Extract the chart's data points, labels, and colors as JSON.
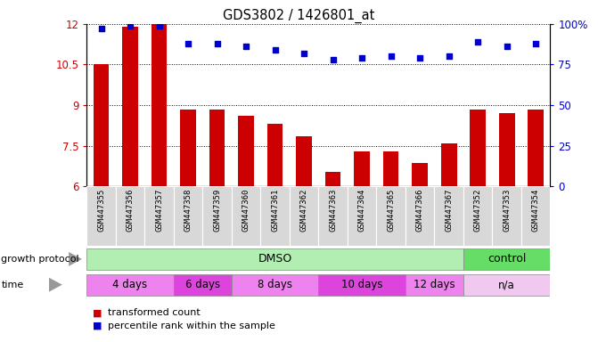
{
  "title": "GDS3802 / 1426801_at",
  "samples": [
    "GSM447355",
    "GSM447356",
    "GSM447357",
    "GSM447358",
    "GSM447359",
    "GSM447360",
    "GSM447361",
    "GSM447362",
    "GSM447363",
    "GSM447364",
    "GSM447365",
    "GSM447366",
    "GSM447367",
    "GSM447352",
    "GSM447353",
    "GSM447354"
  ],
  "bar_values": [
    10.5,
    11.9,
    12.0,
    8.85,
    8.85,
    8.6,
    8.3,
    7.85,
    6.55,
    7.3,
    7.3,
    6.85,
    7.6,
    8.85,
    8.7,
    8.85
  ],
  "dot_values": [
    97,
    99,
    99,
    88,
    88,
    86,
    84,
    82,
    78,
    79,
    80,
    79,
    80,
    89,
    86,
    88
  ],
  "ylim_left": [
    6,
    12
  ],
  "ylim_right": [
    0,
    100
  ],
  "yticks_left": [
    6,
    7.5,
    9,
    10.5,
    12
  ],
  "yticks_right": [
    0,
    25,
    50,
    75,
    100
  ],
  "bar_color": "#CC0000",
  "dot_color": "#0000CC",
  "legend_bar_label": "transformed count",
  "legend_dot_label": "percentile rank within the sample",
  "growth_protocol_label": "growth protocol",
  "time_label": "time",
  "tick_color_left": "#CC0000",
  "tick_color_right": "#0000CC",
  "dmso_color": "#B2EEB2",
  "control_color": "#66DD66",
  "time_color_alt1": "#EE82EE",
  "time_color_alt2": "#DD44DD",
  "time_color_na": "#F0C8F0",
  "sample_bg_color": "#D8D8D8",
  "time_boundaries": [
    [
      0,
      3,
      "4 days"
    ],
    [
      3,
      5,
      "6 days"
    ],
    [
      5,
      8,
      "8 days"
    ],
    [
      8,
      11,
      "10 days"
    ],
    [
      11,
      13,
      "12 days"
    ],
    [
      13,
      16,
      "n/a"
    ]
  ]
}
